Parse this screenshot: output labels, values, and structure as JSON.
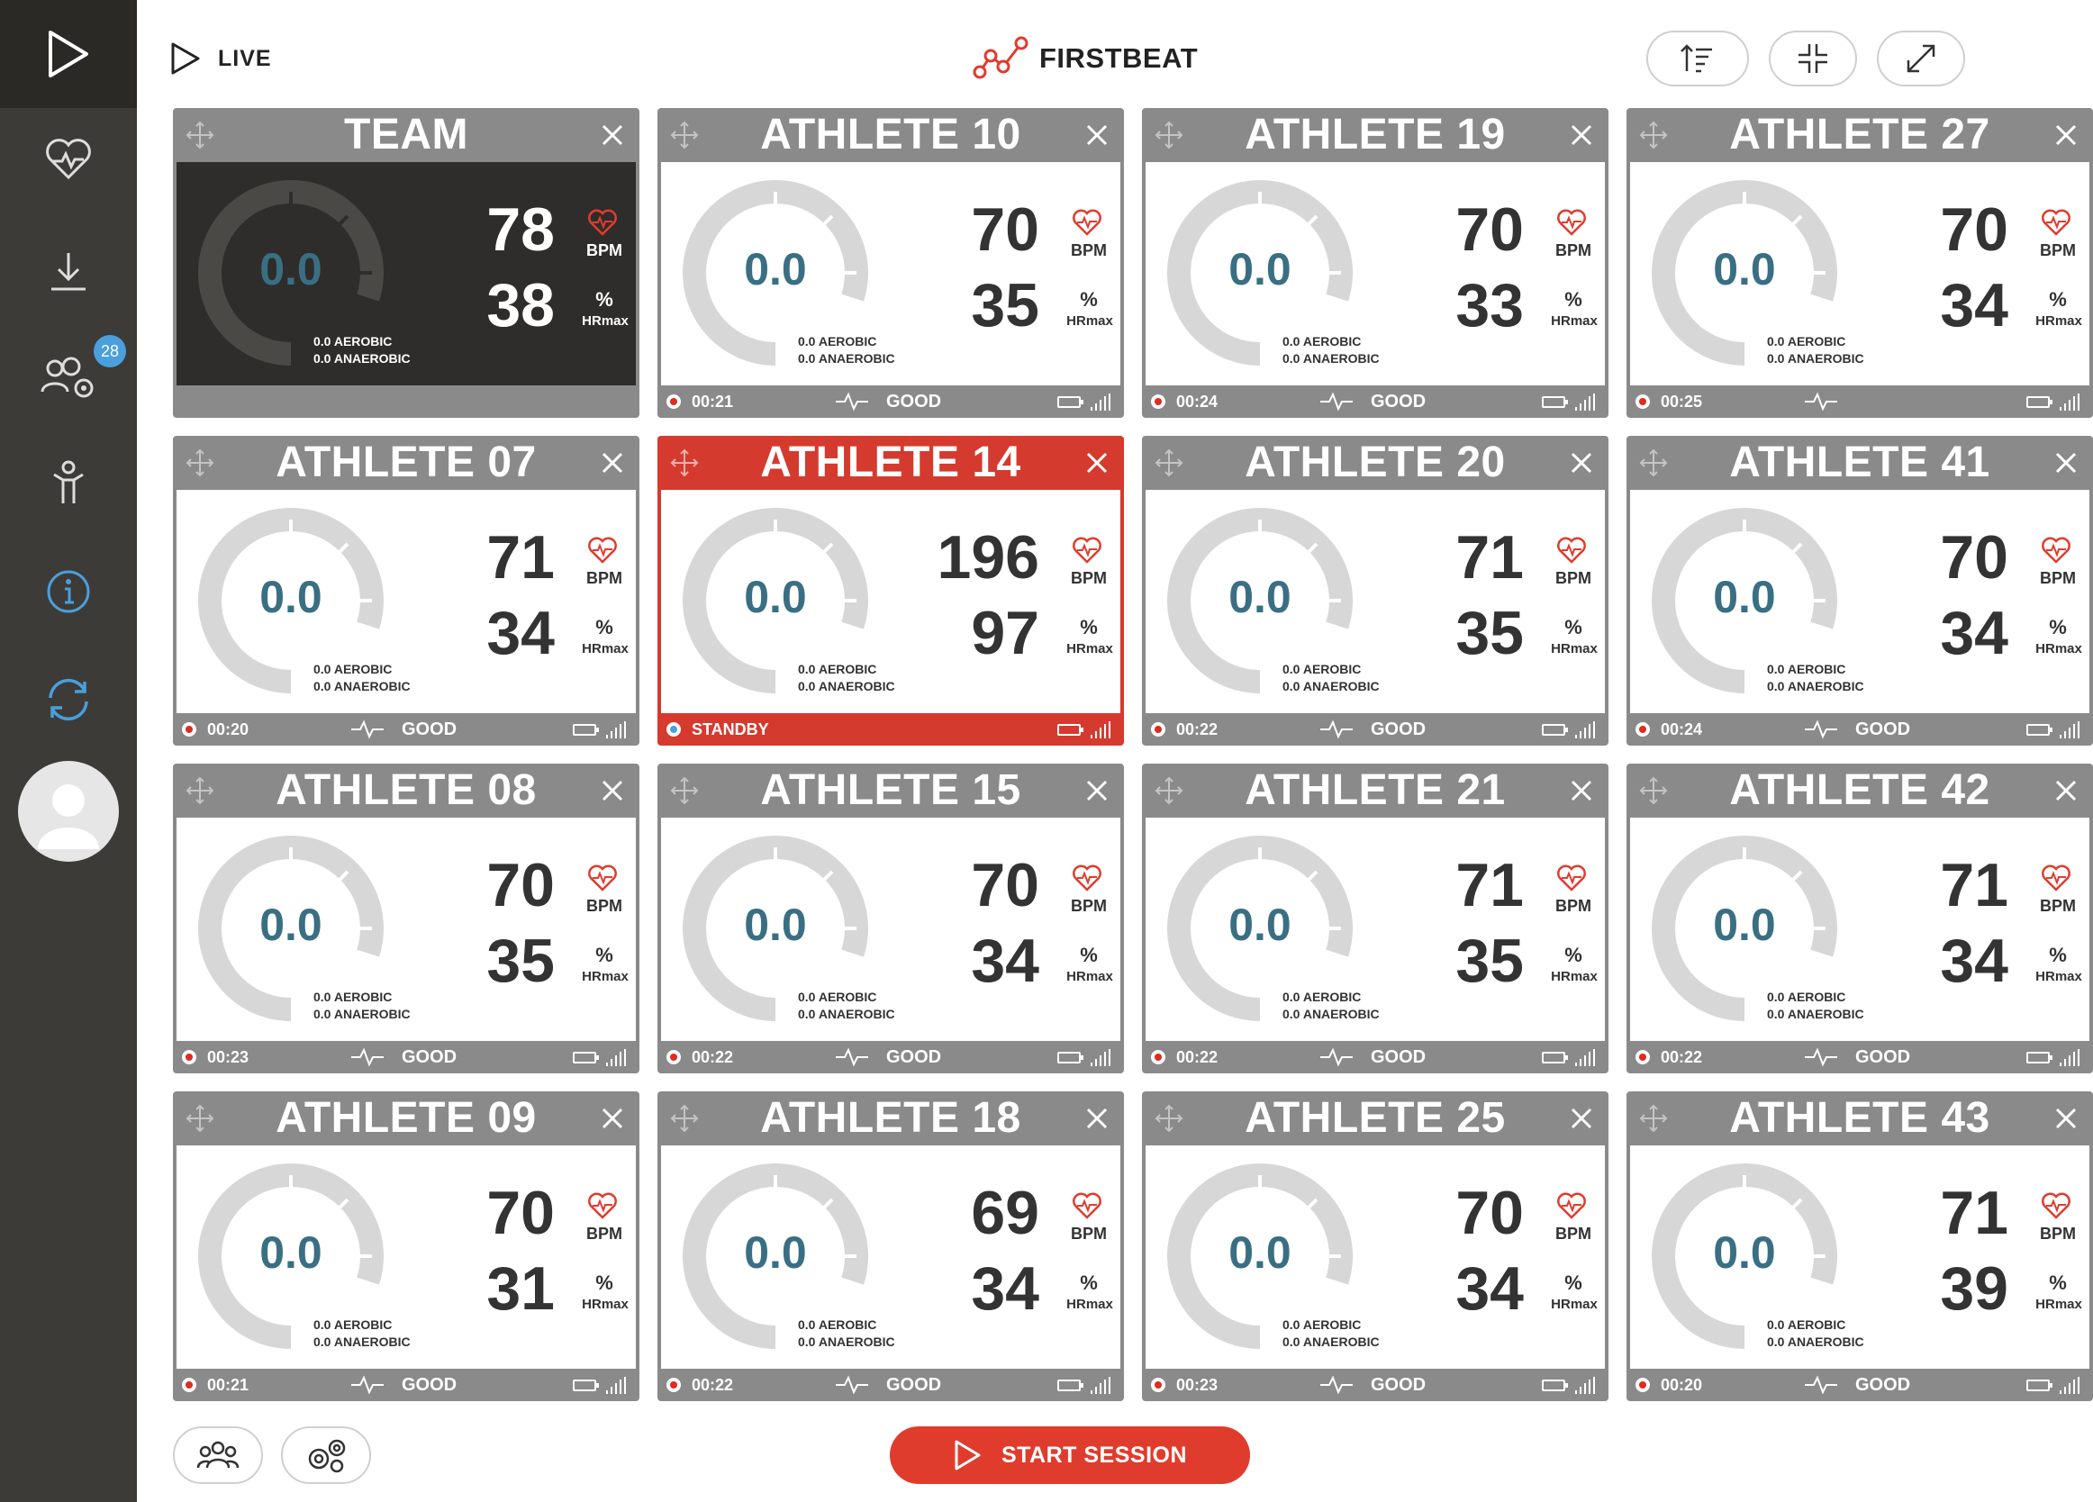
{
  "header": {
    "live_label": "LIVE",
    "brand_name": "FIRSTBEAT",
    "buttons": [
      {
        "name": "sort-button",
        "icon": "sort-icon"
      },
      {
        "name": "compact-view-button",
        "icon": "collapse-icon"
      },
      {
        "name": "fullscreen-button",
        "icon": "expand-icon"
      }
    ]
  },
  "sidebar": {
    "items": [
      {
        "name": "live-nav",
        "icon": "play-icon",
        "active": true
      },
      {
        "name": "heart-nav",
        "icon": "heart-icon"
      },
      {
        "name": "download-nav",
        "icon": "download-icon"
      },
      {
        "name": "team-settings-nav",
        "icon": "group-settings-icon",
        "badge": "28"
      },
      {
        "name": "athlete-nav",
        "icon": "athlete-icon"
      },
      {
        "name": "info-nav",
        "icon": "info-icon"
      },
      {
        "name": "sync-nav",
        "icon": "sync-icon"
      }
    ],
    "badge": "28"
  },
  "colors": {
    "accent_red": "#e03c2e",
    "card_gray": "#8a8a8a",
    "gauge_value": "#3a6f83",
    "info_blue": "#4a9fdc",
    "sidebar": "#3c3b38"
  },
  "units": {
    "bpm": "BPM",
    "percent": "%",
    "hrmax": "HRmax"
  },
  "cards": [
    {
      "title": "TEAM",
      "gauge": "0.0",
      "bpm": "78",
      "hr": "38",
      "aerobic": "0.0 AEROBIC",
      "anaerobic": "0.0 ANAEROBIC",
      "time": "",
      "status": "",
      "variant": "team"
    },
    {
      "title": "ATHLETE 10",
      "gauge": "0.0",
      "bpm": "70",
      "hr": "35",
      "aerobic": "0.0 AEROBIC",
      "anaerobic": "0.0 ANAEROBIC",
      "time": "00:21",
      "status": "GOOD"
    },
    {
      "title": "ATHLETE 19",
      "gauge": "0.0",
      "bpm": "70",
      "hr": "33",
      "aerobic": "0.0 AEROBIC",
      "anaerobic": "0.0 ANAEROBIC",
      "time": "00:24",
      "status": "GOOD"
    },
    {
      "title": "ATHLETE 27",
      "gauge": "0.0",
      "bpm": "70",
      "hr": "34",
      "aerobic": "0.0 AEROBIC",
      "anaerobic": "0.0 ANAEROBIC",
      "time": "00:25",
      "status": ""
    },
    {
      "title": "ATHLETE 07",
      "gauge": "0.0",
      "bpm": "71",
      "hr": "34",
      "aerobic": "0.0 AEROBIC",
      "anaerobic": "0.0 ANAEROBIC",
      "time": "00:20",
      "status": "GOOD"
    },
    {
      "title": "ATHLETE 14",
      "gauge": "0.0",
      "bpm": "196",
      "hr": "97",
      "aerobic": "0.0 AEROBIC",
      "anaerobic": "0.0 ANAEROBIC",
      "time": "STANDBY",
      "status": "",
      "variant": "alert"
    },
    {
      "title": "ATHLETE 20",
      "gauge": "0.0",
      "bpm": "71",
      "hr": "35",
      "aerobic": "0.0 AEROBIC",
      "anaerobic": "0.0 ANAEROBIC",
      "time": "00:22",
      "status": "GOOD"
    },
    {
      "title": "ATHLETE 41",
      "gauge": "0.0",
      "bpm": "70",
      "hr": "34",
      "aerobic": "0.0 AEROBIC",
      "anaerobic": "0.0 ANAEROBIC",
      "time": "00:24",
      "status": "GOOD"
    },
    {
      "title": "ATHLETE 08",
      "gauge": "0.0",
      "bpm": "70",
      "hr": "35",
      "aerobic": "0.0 AEROBIC",
      "anaerobic": "0.0 ANAEROBIC",
      "time": "00:23",
      "status": "GOOD"
    },
    {
      "title": "ATHLETE 15",
      "gauge": "0.0",
      "bpm": "70",
      "hr": "34",
      "aerobic": "0.0 AEROBIC",
      "anaerobic": "0.0 ANAEROBIC",
      "time": "00:22",
      "status": "GOOD"
    },
    {
      "title": "ATHLETE 21",
      "gauge": "0.0",
      "bpm": "71",
      "hr": "35",
      "aerobic": "0.0 AEROBIC",
      "anaerobic": "0.0 ANAEROBIC",
      "time": "00:22",
      "status": "GOOD"
    },
    {
      "title": "ATHLETE 42",
      "gauge": "0.0",
      "bpm": "71",
      "hr": "34",
      "aerobic": "0.0 AEROBIC",
      "anaerobic": "0.0 ANAEROBIC",
      "time": "00:22",
      "status": "GOOD"
    },
    {
      "title": "ATHLETE 09",
      "gauge": "0.0",
      "bpm": "70",
      "hr": "31",
      "aerobic": "0.0 AEROBIC",
      "anaerobic": "0.0 ANAEROBIC",
      "time": "00:21",
      "status": "GOOD"
    },
    {
      "title": "ATHLETE 18",
      "gauge": "0.0",
      "bpm": "69",
      "hr": "34",
      "aerobic": "0.0 AEROBIC",
      "anaerobic": "0.0 ANAEROBIC",
      "time": "00:22",
      "status": "GOOD"
    },
    {
      "title": "ATHLETE 25",
      "gauge": "0.0",
      "bpm": "70",
      "hr": "34",
      "aerobic": "0.0 AEROBIC",
      "anaerobic": "0.0 ANAEROBIC",
      "time": "00:23",
      "status": "GOOD"
    },
    {
      "title": "ATHLETE 43",
      "gauge": "0.0",
      "bpm": "71",
      "hr": "39",
      "aerobic": "0.0 AEROBIC",
      "anaerobic": "0.0 ANAEROBIC",
      "time": "00:20",
      "status": "GOOD"
    }
  ],
  "footer": {
    "start_label": "START SESSION",
    "buttons": [
      {
        "name": "group-button",
        "icon": "group-icon"
      },
      {
        "name": "settings-button",
        "icon": "gears-icon"
      }
    ]
  }
}
